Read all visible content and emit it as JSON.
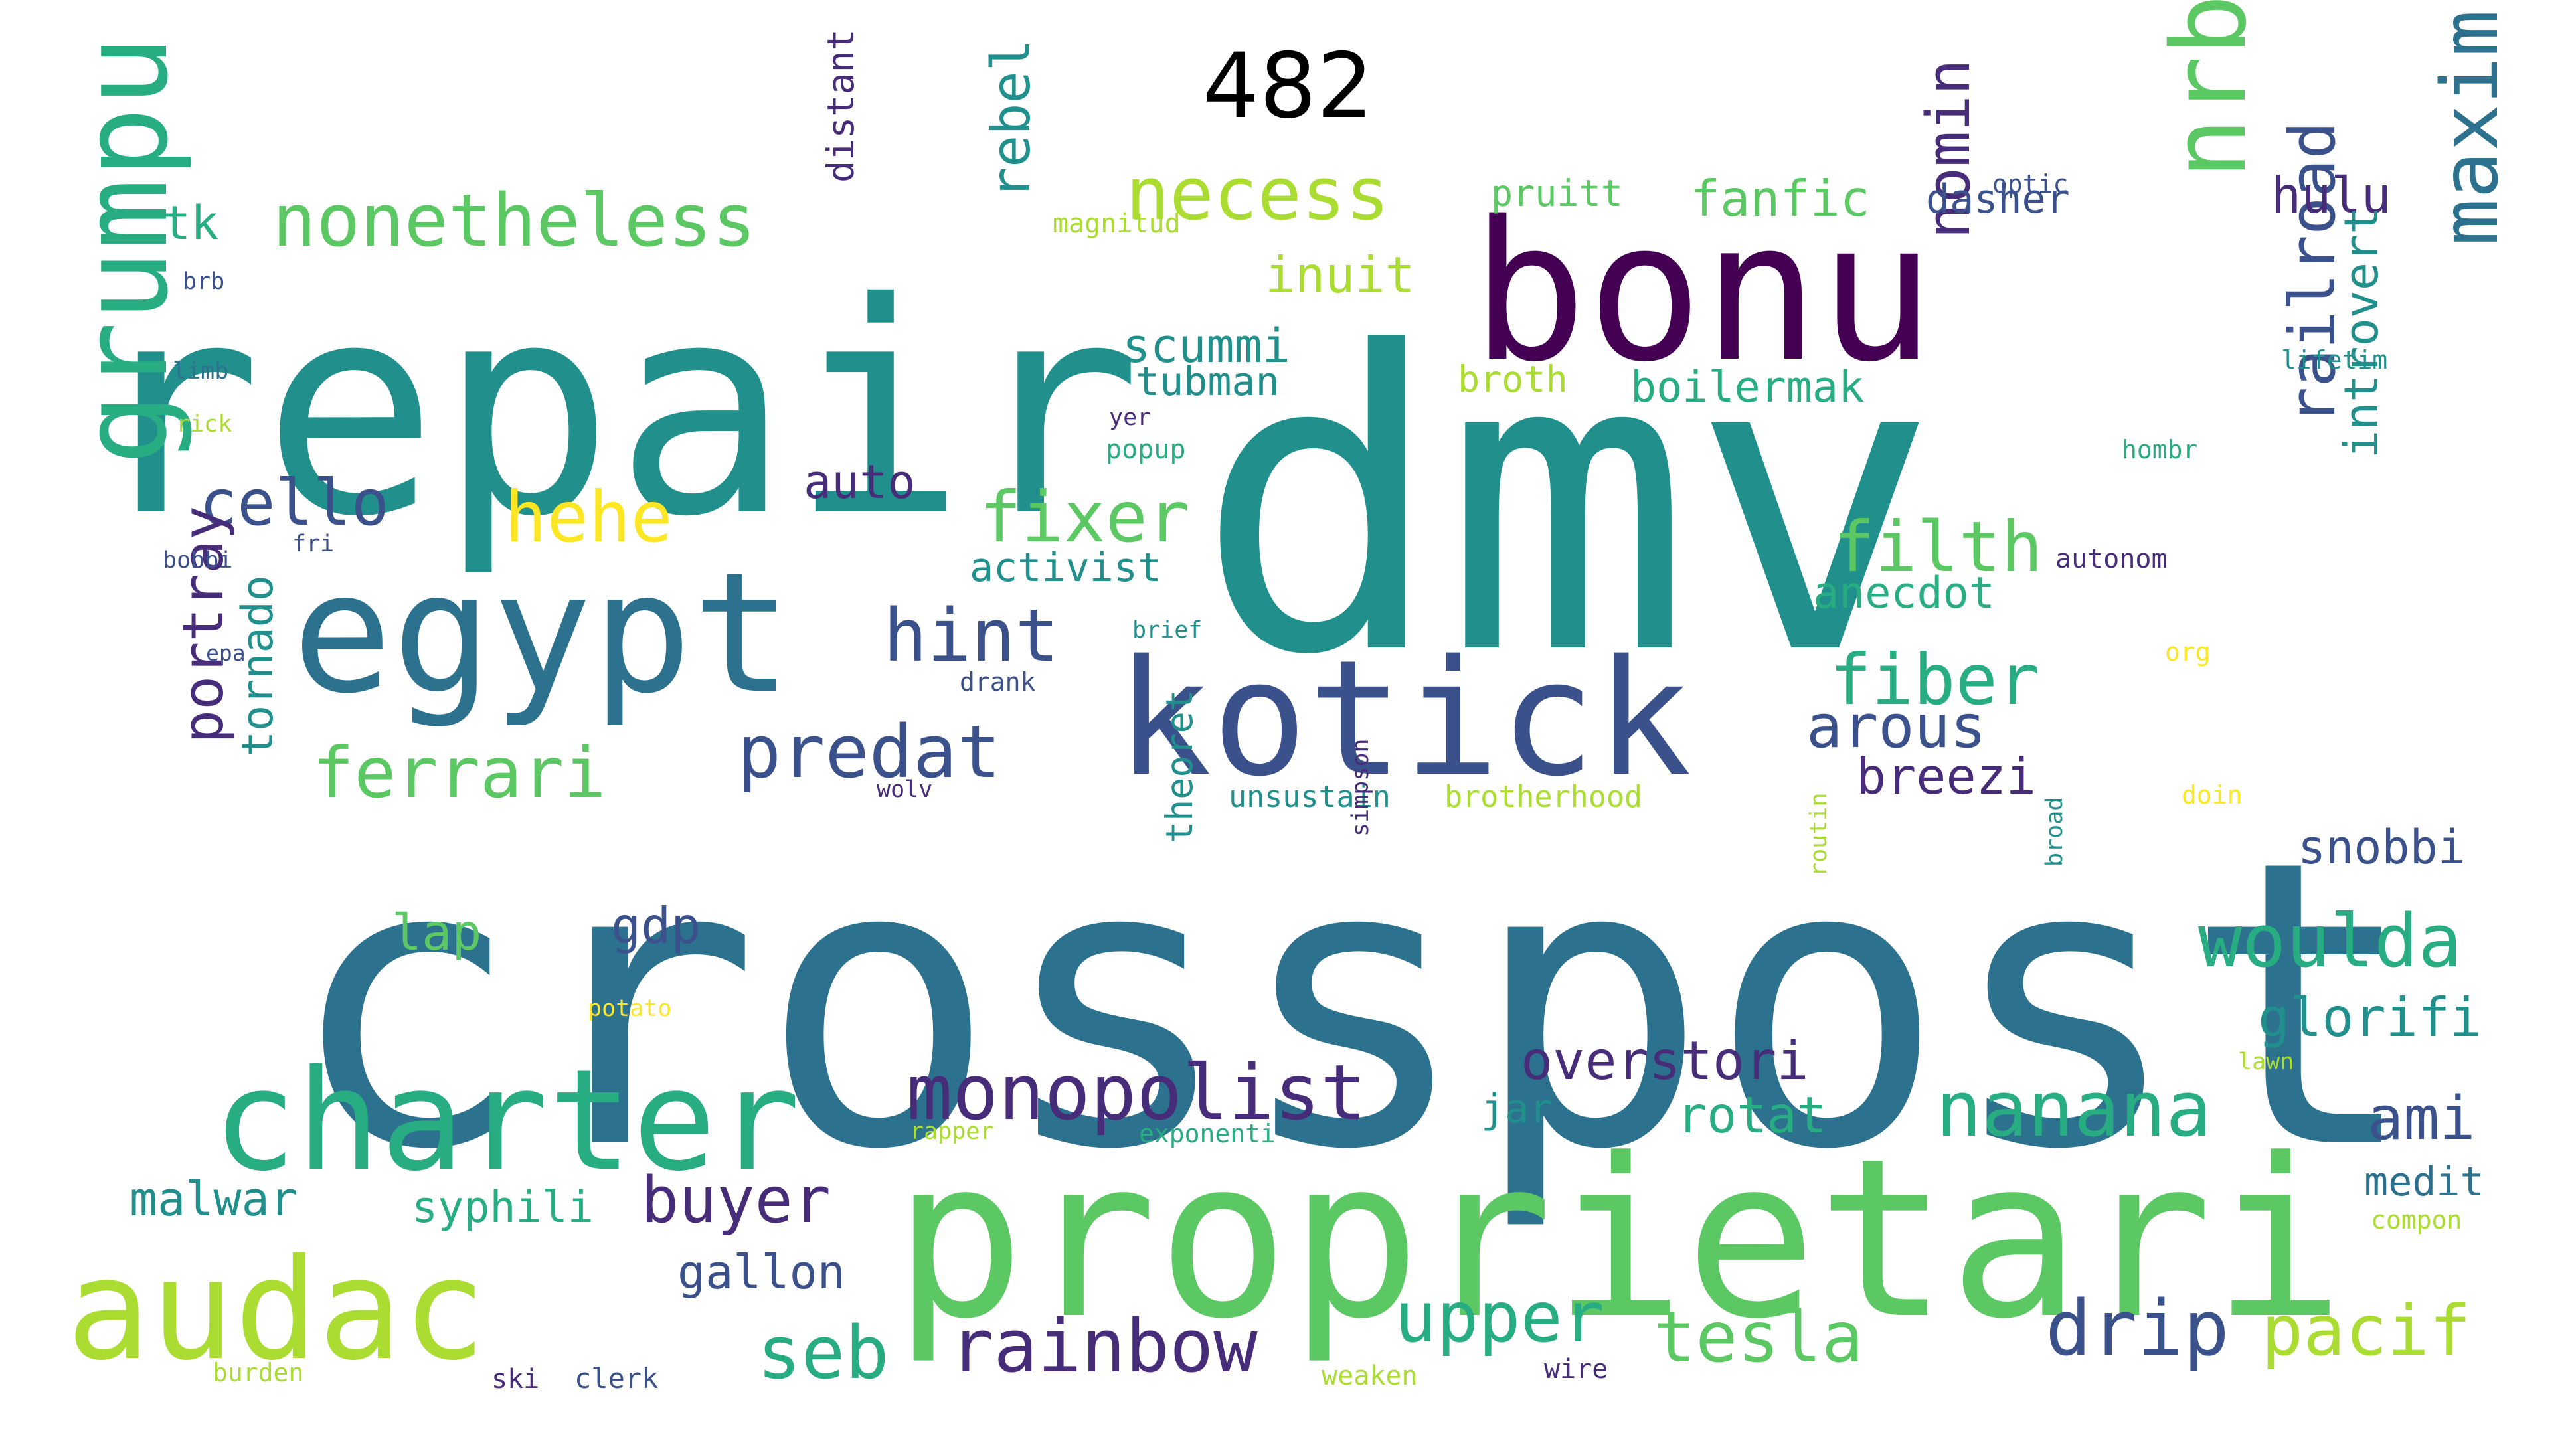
{
  "title": "482",
  "colors": {
    "c1": "#440154",
    "c2": "#472c7a",
    "c3": "#3b518b",
    "c4": "#2c718e",
    "c5": "#21908d",
    "c6": "#27ad81",
    "c7": "#5cc863",
    "c8": "#aadc32",
    "c9": "#fde725"
  },
  "words": [
    {
      "text": "crosspost",
      "color": "c4"
    },
    {
      "text": "dmv",
      "color": "c5"
    },
    {
      "text": "repair",
      "color": "c5"
    },
    {
      "text": "proprietari",
      "color": "c7"
    },
    {
      "text": "nrb",
      "color": "c7"
    },
    {
      "text": "maxim",
      "color": "c4"
    },
    {
      "text": "bonu",
      "color": "c1"
    },
    {
      "text": "kotick",
      "color": "c3"
    },
    {
      "text": "egypt",
      "color": "c4"
    },
    {
      "text": "grumpu",
      "color": "c6"
    },
    {
      "text": "charter",
      "color": "c6"
    },
    {
      "text": "audac",
      "color": "c8"
    },
    {
      "text": "nonetheless",
      "color": "c7"
    },
    {
      "text": "necess",
      "color": "c8"
    },
    {
      "text": "monopolist",
      "color": "c2"
    },
    {
      "text": "nanana",
      "color": "c6"
    },
    {
      "text": "rainbow",
      "color": "c2"
    },
    {
      "text": "predat",
      "color": "c3"
    },
    {
      "text": "ferrari",
      "color": "c7"
    },
    {
      "text": "woulda",
      "color": "c6"
    },
    {
      "text": "fixer",
      "color": "c7"
    },
    {
      "text": "hint",
      "color": "c3"
    },
    {
      "text": "fiber",
      "color": "c6"
    },
    {
      "text": "filth",
      "color": "c7"
    },
    {
      "text": "cello",
      "color": "c3"
    },
    {
      "text": "hehe",
      "color": "c9"
    },
    {
      "text": "tesla",
      "color": "c7"
    },
    {
      "text": "pacif",
      "color": "c8"
    },
    {
      "text": "drip",
      "color": "c3"
    },
    {
      "text": "upper",
      "color": "c6"
    },
    {
      "text": "seb",
      "color": "c6"
    },
    {
      "text": "buyer",
      "color": "c2"
    },
    {
      "text": "railroad",
      "color": "c3"
    },
    {
      "text": "nomin",
      "color": "c2"
    },
    {
      "text": "arous",
      "color": "c3"
    },
    {
      "text": "rebel",
      "color": "c5"
    },
    {
      "text": "portray",
      "color": "c2"
    },
    {
      "text": "ami",
      "color": "c3"
    },
    {
      "text": "overstori",
      "color": "c2"
    },
    {
      "text": "glorifi",
      "color": "c5"
    },
    {
      "text": "fanfic",
      "color": "c7"
    },
    {
      "text": "inuit",
      "color": "c8"
    },
    {
      "text": "hulu",
      "color": "c2"
    },
    {
      "text": "introvert",
      "color": "c5"
    },
    {
      "text": "scummi",
      "color": "c5"
    },
    {
      "text": "tornado",
      "color": "c5"
    },
    {
      "text": "auto",
      "color": "c2"
    },
    {
      "text": "gdp",
      "color": "c3"
    },
    {
      "text": "breezi",
      "color": "c2"
    },
    {
      "text": "snobbi",
      "color": "c3"
    },
    {
      "text": "gallon",
      "color": "c3"
    },
    {
      "text": "rotat",
      "color": "c6"
    },
    {
      "text": "boilermak",
      "color": "c6"
    },
    {
      "text": "anecdot",
      "color": "c6"
    },
    {
      "text": "activist",
      "color": "c5"
    },
    {
      "text": "lap",
      "color": "c7"
    },
    {
      "text": "malwar",
      "color": "c5"
    },
    {
      "text": "syphili",
      "color": "c6"
    },
    {
      "text": "tk",
      "color": "c6"
    },
    {
      "text": "medit",
      "color": "c4"
    },
    {
      "text": "dasher",
      "color": "c3"
    },
    {
      "text": "tubman",
      "color": "c5"
    },
    {
      "text": "distant",
      "color": "c2"
    },
    {
      "text": "jar",
      "color": "c5"
    },
    {
      "text": "pruitt",
      "color": "c7"
    },
    {
      "text": "broth",
      "color": "c8"
    },
    {
      "text": "theoret",
      "color": "c5"
    },
    {
      "text": "unsustain",
      "color": "c5"
    },
    {
      "text": "brotherhood",
      "color": "c8"
    },
    {
      "text": "magnitud",
      "color": "c8"
    },
    {
      "text": "exponenti",
      "color": "c6"
    },
    {
      "text": "popup",
      "color": "c6"
    },
    {
      "text": "rapper",
      "color": "c8"
    },
    {
      "text": "drank",
      "color": "c3"
    },
    {
      "text": "optic",
      "color": "c3"
    },
    {
      "text": "autonom",
      "color": "c2"
    },
    {
      "text": "lifetim",
      "color": "c5"
    },
    {
      "text": "hombr",
      "color": "c6"
    },
    {
      "text": "compon",
      "color": "c8"
    },
    {
      "text": "lawn",
      "color": "c8"
    },
    {
      "text": "routin",
      "color": "c8"
    },
    {
      "text": "broad",
      "color": "c5"
    },
    {
      "text": "simpson",
      "color": "c2"
    },
    {
      "text": "brief",
      "color": "c5"
    },
    {
      "text": "yer",
      "color": "c2"
    },
    {
      "text": "org",
      "color": "c9"
    },
    {
      "text": "doin",
      "color": "c9"
    },
    {
      "text": "potato",
      "color": "c9"
    },
    {
      "text": "wolv",
      "color": "c2"
    },
    {
      "text": "fri",
      "color": "c3"
    },
    {
      "text": "bobbi",
      "color": "c3"
    },
    {
      "text": "epa",
      "color": "c3"
    },
    {
      "text": "brb",
      "color": "c3"
    },
    {
      "text": "limb",
      "color": "c4"
    },
    {
      "text": "rick",
      "color": "c8"
    },
    {
      "text": "burden",
      "color": "c8"
    },
    {
      "text": "ski",
      "color": "c2"
    },
    {
      "text": "clerk",
      "color": "c3"
    },
    {
      "text": "weaken",
      "color": "c8"
    },
    {
      "text": "wire",
      "color": "c2"
    }
  ]
}
